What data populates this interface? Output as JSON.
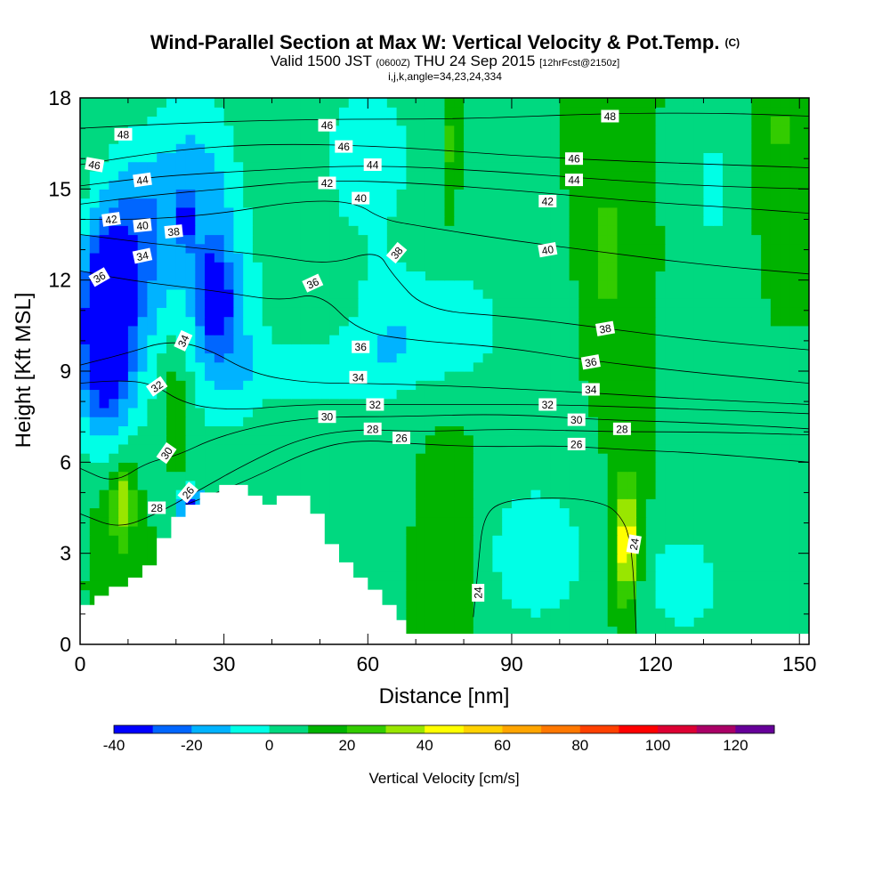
{
  "title": {
    "main": "Wind-Parallel Section at Max W: Vertical Velocity & Pot.Temp.",
    "main_suffix": "(C)",
    "valid_prefix": "Valid 1500 JST",
    "valid_utc": "(0600Z)",
    "valid_date": "THU 24 Sep 2015",
    "forecast": "[12hrFcst@2150z]",
    "indices": "i,j,k,angle=34,23,24,334"
  },
  "colors": {
    "bands": [
      "#0000ff",
      "#0066ff",
      "#00b3ff",
      "#00ffe6",
      "#00d980",
      "#00b300",
      "#33cc00",
      "#99e600",
      "#ffff00",
      "#ffd200",
      "#ffa500",
      "#ff7800",
      "#ff4000",
      "#ff0000",
      "#dd0033",
      "#aa0066",
      "#660099"
    ],
    "terrain": "#ffffff",
    "contour": "#000000"
  },
  "chart_data": {
    "type": "heatmap",
    "title": "Wind-Parallel Section at Max W: Vertical Velocity & Pot.Temp.",
    "xlabel": "Distance [nm]",
    "ylabel": "Height [Kft MSL]",
    "xlim": [
      0,
      152
    ],
    "ylim": [
      0,
      18
    ],
    "xticks": [
      "0",
      "30",
      "60",
      "90",
      "120",
      "150"
    ],
    "yticks": [
      "0",
      "3",
      "6",
      "9",
      "12",
      "15",
      "18"
    ],
    "colorbar": {
      "title": "Vertical Velocity [cm/s]",
      "levels": [
        -40,
        -30,
        -20,
        -10,
        0,
        10,
        20,
        30,
        40,
        50,
        60,
        70,
        80,
        90,
        100,
        110,
        120,
        130
      ],
      "labels": [
        "-40",
        "-20",
        "0",
        "20",
        "40",
        "60",
        "80",
        "100",
        "120"
      ]
    },
    "background_w": 10,
    "w_features": [
      {
        "x": 5,
        "y": 10.5,
        "rx": 5,
        "ry": 3,
        "w": -38
      },
      {
        "x": 28,
        "y": 11.4,
        "rx": 3,
        "ry": 1.3,
        "w": -38
      },
      {
        "x": 22,
        "y": 14.0,
        "rx": 1.2,
        "ry": 0.8,
        "w": -28
      },
      {
        "x": 12,
        "y": 13.5,
        "rx": 7,
        "ry": 3,
        "w": -18
      },
      {
        "x": 7,
        "y": 10.0,
        "rx": 9,
        "ry": 4.5,
        "w": -18
      },
      {
        "x": 30,
        "y": 10.5,
        "rx": 8,
        "ry": 3.5,
        "w": -18
      },
      {
        "x": 24,
        "y": 15.0,
        "rx": 9,
        "ry": 3.5,
        "w": -18
      },
      {
        "x": 23,
        "y": 4.6,
        "rx": 3,
        "ry": 0.6,
        "w": -38
      },
      {
        "x": 50,
        "y": 9.0,
        "rx": 18,
        "ry": 1.3,
        "w": -8
      },
      {
        "x": 65,
        "y": 10.5,
        "rx": 9,
        "ry": 2,
        "w": -8
      },
      {
        "x": 80,
        "y": 10.5,
        "rx": 10,
        "ry": 2.0,
        "w": -8
      },
      {
        "x": 60,
        "y": 16.0,
        "rx": 12,
        "ry": 3.5,
        "w": -8
      },
      {
        "x": 95,
        "y": 3.0,
        "rx": 14,
        "ry": 3,
        "w": -8
      },
      {
        "x": 126,
        "y": 2.0,
        "rx": 10,
        "ry": 2.0,
        "w": -8
      },
      {
        "x": 132,
        "y": 15.0,
        "rx": 3,
        "ry": 2.2,
        "w": -8
      },
      {
        "x": 8,
        "y": 4.5,
        "rx": 5,
        "ry": 2.5,
        "w": 25
      },
      {
        "x": 20,
        "y": 8.0,
        "rx": 3,
        "ry": 1.8,
        "w": 25
      },
      {
        "x": 9,
        "y": 4.8,
        "rx": 2.0,
        "ry": 1.2,
        "w": 35
      },
      {
        "x": 110,
        "y": 13.0,
        "rx": 3,
        "ry": 4,
        "w": 25
      },
      {
        "x": 114,
        "y": 3.5,
        "rx": 3.5,
        "ry": 2.8,
        "w": 32
      },
      {
        "x": 114,
        "y": 3.2,
        "rx": 1.6,
        "ry": 1.6,
        "w": 45
      },
      {
        "x": 78,
        "y": 2.8,
        "rx": 5,
        "ry": 3.2,
        "w": 25
      },
      {
        "x": 77,
        "y": 16.5,
        "rx": 1.5,
        "ry": 2.0,
        "w": 25
      },
      {
        "x": 146,
        "y": 17.0,
        "rx": 2.5,
        "ry": 1.5,
        "w": 25
      }
    ],
    "terrain_profile": [
      [
        0,
        1.3
      ],
      [
        3,
        1.3
      ],
      [
        3,
        1.6
      ],
      [
        6,
        1.6
      ],
      [
        6,
        1.9
      ],
      [
        10,
        1.9
      ],
      [
        10,
        2.2
      ],
      [
        13,
        2.2
      ],
      [
        13,
        2.6
      ],
      [
        16,
        2.6
      ],
      [
        16,
        3.5
      ],
      [
        19,
        3.5
      ],
      [
        19,
        4.2
      ],
      [
        22,
        4.2
      ],
      [
        22,
        4.6
      ],
      [
        25,
        4.6
      ],
      [
        25,
        5.0
      ],
      [
        29,
        5.0
      ],
      [
        29,
        5.25
      ],
      [
        35,
        5.25
      ],
      [
        35,
        4.9
      ],
      [
        38,
        4.9
      ],
      [
        38,
        4.6
      ],
      [
        41,
        4.6
      ],
      [
        41,
        4.9
      ],
      [
        48,
        4.9
      ],
      [
        48,
        4.3
      ],
      [
        51,
        4.3
      ],
      [
        51,
        3.3
      ],
      [
        54,
        3.3
      ],
      [
        54,
        2.7
      ],
      [
        57,
        2.7
      ],
      [
        57,
        2.2
      ],
      [
        60,
        2.2
      ],
      [
        60,
        1.8
      ],
      [
        63,
        1.8
      ],
      [
        63,
        1.3
      ],
      [
        66,
        1.3
      ],
      [
        66,
        0.8
      ],
      [
        68,
        0.8
      ],
      [
        68,
        0.35
      ],
      [
        152,
        0.35
      ]
    ],
    "theta_contours": [
      {
        "level": 24,
        "label": "24",
        "points": [
          [
            82,
            0.9
          ],
          [
            83,
            2.5
          ],
          [
            84,
            4.2
          ],
          [
            88,
            4.75
          ],
          [
            100,
            4.85
          ],
          [
            108,
            4.7
          ],
          [
            112,
            4.4
          ],
          [
            115,
            3.5
          ],
          [
            116,
            0.35
          ]
        ]
      },
      {
        "level": 26,
        "label": "26",
        "points": [
          [
            22,
            4.6
          ],
          [
            35,
            5.4
          ],
          [
            48,
            6.4
          ],
          [
            58,
            6.75
          ],
          [
            70,
            6.6
          ],
          [
            85,
            6.5
          ],
          [
            100,
            6.55
          ],
          [
            115,
            6.4
          ],
          [
            130,
            6.3
          ],
          [
            152,
            6.0
          ]
        ]
      },
      {
        "level": 28,
        "label": "28",
        "points": [
          [
            0,
            4.3
          ],
          [
            8,
            3.8
          ],
          [
            16,
            4.3
          ],
          [
            24,
            5.0
          ],
          [
            34,
            5.9
          ],
          [
            46,
            6.8
          ],
          [
            58,
            7.1
          ],
          [
            70,
            7.0
          ],
          [
            90,
            7.1
          ],
          [
            110,
            7.0
          ],
          [
            130,
            7.0
          ],
          [
            152,
            6.9
          ]
        ]
      },
      {
        "level": 30,
        "label": "30",
        "points": [
          [
            0,
            5.8
          ],
          [
            7,
            5.3
          ],
          [
            14,
            6.0
          ],
          [
            20,
            6.2
          ],
          [
            28,
            6.8
          ],
          [
            40,
            7.3
          ],
          [
            52,
            7.5
          ],
          [
            66,
            7.5
          ],
          [
            88,
            7.6
          ],
          [
            108,
            7.4
          ],
          [
            130,
            7.3
          ],
          [
            152,
            7.1
          ]
        ]
      },
      {
        "level": 32,
        "label": "32",
        "points": [
          [
            0,
            8.6
          ],
          [
            8,
            8.7
          ],
          [
            15,
            8.6
          ],
          [
            22,
            7.9
          ],
          [
            32,
            7.7
          ],
          [
            46,
            7.9
          ],
          [
            60,
            7.9
          ],
          [
            78,
            7.9
          ],
          [
            98,
            7.9
          ],
          [
            118,
            7.8
          ],
          [
            135,
            7.7
          ],
          [
            152,
            7.6
          ]
        ]
      },
      {
        "level": 34,
        "label": "34",
        "points": [
          [
            0,
            9.2
          ],
          [
            10,
            9.6
          ],
          [
            18,
            10.0
          ],
          [
            26,
            9.8
          ],
          [
            36,
            8.9
          ],
          [
            48,
            8.6
          ],
          [
            60,
            8.6
          ],
          [
            80,
            8.5
          ],
          [
            105,
            8.3
          ],
          [
            125,
            8.1
          ],
          [
            152,
            7.9
          ]
        ]
      },
      {
        "level": 36,
        "label": "36",
        "points": [
          [
            0,
            12.3
          ],
          [
            10,
            12.0
          ],
          [
            20,
            11.8
          ],
          [
            30,
            11.6
          ],
          [
            42,
            11.3
          ],
          [
            50,
            11.6
          ],
          [
            58,
            10.3
          ],
          [
            70,
            10.0
          ],
          [
            88,
            9.8
          ],
          [
            104,
            9.4
          ],
          [
            125,
            9.0
          ],
          [
            152,
            8.6
          ]
        ]
      },
      {
        "level": 38,
        "label": "38",
        "points": [
          [
            0,
            13.5
          ],
          [
            15,
            13.2
          ],
          [
            28,
            13.0
          ],
          [
            40,
            12.8
          ],
          [
            52,
            12.5
          ],
          [
            62,
            13.0
          ],
          [
            65,
            12.2
          ],
          [
            72,
            11.0
          ],
          [
            90,
            10.8
          ],
          [
            110,
            10.4
          ],
          [
            130,
            10.0
          ],
          [
            152,
            9.7
          ]
        ]
      },
      {
        "level": 40,
        "label": "40",
        "points": [
          [
            0,
            14.0
          ],
          [
            15,
            14.0
          ],
          [
            30,
            14.2
          ],
          [
            45,
            14.6
          ],
          [
            57,
            14.6
          ],
          [
            63,
            14.0
          ],
          [
            70,
            13.8
          ],
          [
            90,
            13.3
          ],
          [
            110,
            12.9
          ],
          [
            130,
            12.5
          ],
          [
            152,
            12.2
          ]
        ]
      },
      {
        "level": 42,
        "label": "42",
        "points": [
          [
            0,
            14.5
          ],
          [
            15,
            14.8
          ],
          [
            30,
            15.0
          ],
          [
            50,
            15.3
          ],
          [
            70,
            15.2
          ],
          [
            95,
            14.9
          ],
          [
            115,
            14.6
          ],
          [
            135,
            14.4
          ],
          [
            152,
            14.2
          ]
        ]
      },
      {
        "level": 44,
        "label": "44",
        "points": [
          [
            0,
            15.1
          ],
          [
            15,
            15.4
          ],
          [
            35,
            15.6
          ],
          [
            60,
            15.8
          ],
          [
            85,
            15.6
          ],
          [
            110,
            15.3
          ],
          [
            130,
            15.1
          ],
          [
            152,
            15.0
          ]
        ]
      },
      {
        "level": 46,
        "label": "46",
        "points": [
          [
            0,
            15.8
          ],
          [
            20,
            16.3
          ],
          [
            40,
            16.5
          ],
          [
            65,
            16.4
          ],
          [
            90,
            16.1
          ],
          [
            115,
            15.9
          ],
          [
            135,
            15.8
          ],
          [
            152,
            15.7
          ]
        ]
      },
      {
        "level": 48,
        "label": "48",
        "points": [
          [
            0,
            17.0
          ],
          [
            25,
            17.2
          ],
          [
            50,
            17.3
          ],
          [
            80,
            17.3
          ],
          [
            110,
            17.5
          ],
          [
            135,
            17.5
          ],
          [
            152,
            17.4
          ]
        ]
      }
    ],
    "contour_labels": [
      {
        "text": "48",
        "x": 9,
        "y": 16.8,
        "angle": 0
      },
      {
        "text": "46",
        "x": 3,
        "y": 15.8,
        "angle": 10
      },
      {
        "text": "44",
        "x": 13,
        "y": 15.3,
        "angle": -8
      },
      {
        "text": "42",
        "x": 6.5,
        "y": 14.0,
        "angle": -8
      },
      {
        "text": "40",
        "x": 13,
        "y": 13.8,
        "angle": -6
      },
      {
        "text": "38",
        "x": 19.5,
        "y": 13.6,
        "angle": -6
      },
      {
        "text": "34",
        "x": 13,
        "y": 12.8,
        "angle": -12
      },
      {
        "text": "36",
        "x": 4,
        "y": 12.1,
        "angle": -30
      },
      {
        "text": "34",
        "x": 21.5,
        "y": 10.0,
        "angle": -65
      },
      {
        "text": "32",
        "x": 16,
        "y": 8.5,
        "angle": -35
      },
      {
        "text": "30",
        "x": 18,
        "y": 6.3,
        "angle": -55
      },
      {
        "text": "26",
        "x": 22.5,
        "y": 5.0,
        "angle": -50
      },
      {
        "text": "28",
        "x": 16,
        "y": 4.5,
        "angle": 0
      },
      {
        "text": "46",
        "x": 51.5,
        "y": 17.1,
        "angle": 0
      },
      {
        "text": "46",
        "x": 55,
        "y": 16.4,
        "angle": 0
      },
      {
        "text": "44",
        "x": 61,
        "y": 15.8,
        "angle": 0
      },
      {
        "text": "42",
        "x": 51.5,
        "y": 15.2,
        "angle": 0
      },
      {
        "text": "40",
        "x": 58.5,
        "y": 14.7,
        "angle": 0
      },
      {
        "text": "38",
        "x": 66,
        "y": 12.9,
        "angle": -50
      },
      {
        "text": "36",
        "x": 48.5,
        "y": 11.9,
        "angle": -25
      },
      {
        "text": "36",
        "x": 58.5,
        "y": 9.8,
        "angle": 0
      },
      {
        "text": "34",
        "x": 58,
        "y": 8.8,
        "angle": 0
      },
      {
        "text": "32",
        "x": 61.5,
        "y": 7.9,
        "angle": 0
      },
      {
        "text": "30",
        "x": 51.5,
        "y": 7.5,
        "angle": 0
      },
      {
        "text": "28",
        "x": 61,
        "y": 7.1,
        "angle": 0
      },
      {
        "text": "26",
        "x": 67,
        "y": 6.8,
        "angle": 0
      },
      {
        "text": "48",
        "x": 110.5,
        "y": 17.4,
        "angle": 0
      },
      {
        "text": "46",
        "x": 103,
        "y": 16.0,
        "angle": 0
      },
      {
        "text": "44",
        "x": 103,
        "y": 15.3,
        "angle": 0
      },
      {
        "text": "42",
        "x": 97.5,
        "y": 14.6,
        "angle": 0
      },
      {
        "text": "40",
        "x": 97.5,
        "y": 13.0,
        "angle": -10
      },
      {
        "text": "38",
        "x": 109.5,
        "y": 10.4,
        "angle": -10
      },
      {
        "text": "36",
        "x": 106.5,
        "y": 9.3,
        "angle": -10
      },
      {
        "text": "34",
        "x": 106.5,
        "y": 8.4,
        "angle": 0
      },
      {
        "text": "32",
        "x": 97.5,
        "y": 7.9,
        "angle": 0
      },
      {
        "text": "30",
        "x": 103.5,
        "y": 7.4,
        "angle": 0
      },
      {
        "text": "28",
        "x": 113,
        "y": 7.1,
        "angle": 0
      },
      {
        "text": "26",
        "x": 103.5,
        "y": 6.6,
        "angle": 0
      },
      {
        "text": "24",
        "x": 83,
        "y": 1.7,
        "angle": -90
      },
      {
        "text": "24",
        "x": 115.5,
        "y": 3.3,
        "angle": -80
      }
    ]
  }
}
